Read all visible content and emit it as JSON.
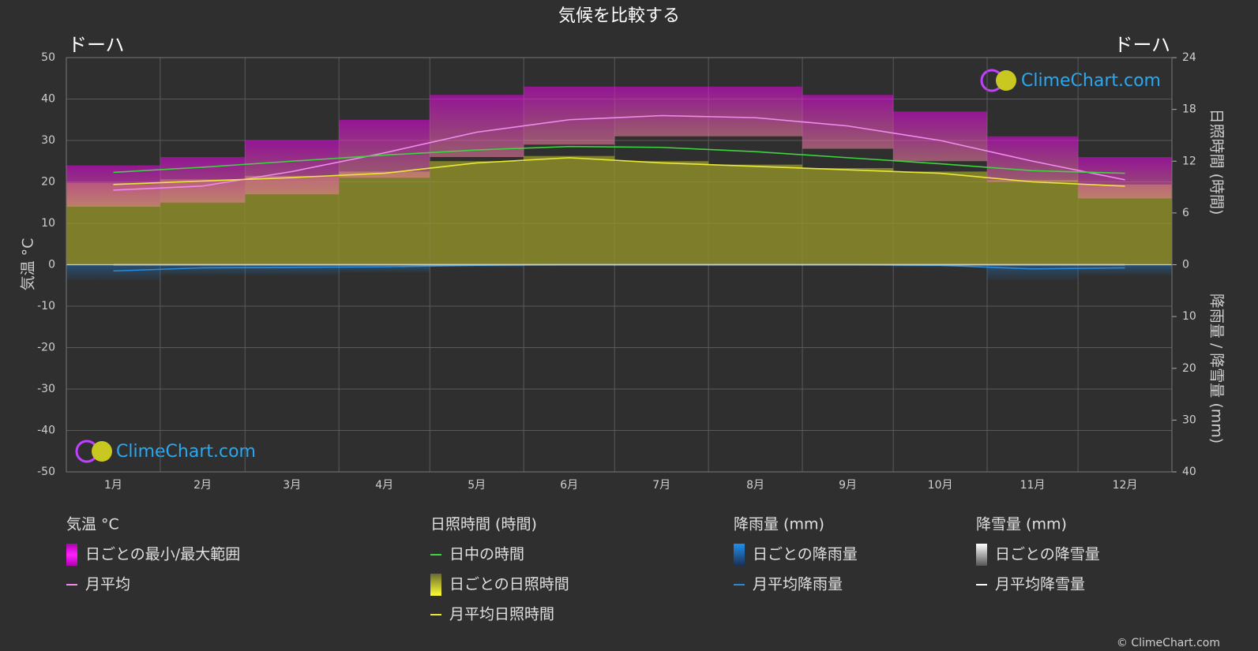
{
  "chart_data": {
    "type": "line",
    "title": "気候を比較する",
    "location_left": "ドーハ",
    "location_right": "ドーハ",
    "y_label": "気温 °C",
    "y2_label": "日照時間 (時間)",
    "y3_label": "降雨量 / 降雪量 (mm)",
    "watermark": "ClimeChart.com",
    "copyright": "© ClimeChart.com",
    "categories": [
      "1月",
      "2月",
      "3月",
      "4月",
      "5月",
      "6月",
      "7月",
      "8月",
      "9月",
      "10月",
      "11月",
      "12月"
    ],
    "ylim": [
      -50,
      50
    ],
    "yticks": [
      -50,
      -40,
      -30,
      -20,
      -10,
      0,
      10,
      20,
      30,
      40,
      50
    ],
    "y2lim": [
      0,
      24
    ],
    "y2ticks": [
      0,
      6,
      12,
      18,
      24
    ],
    "y3lim": [
      0,
      40
    ],
    "y3ticks": [
      10,
      20,
      30,
      40
    ],
    "grid": true,
    "groups": [
      {
        "title": "気温 °C",
        "series": [
          {
            "name": "日ごとの最小/最大範囲",
            "color": "#e600e6",
            "values": [
              24,
              26,
              30,
              35,
              41,
              43,
              43,
              43,
              41,
              37,
              31,
              26
            ],
            "low": [
              14,
              15,
              17,
              21,
              26,
              29,
              31,
              31,
              28,
              25,
              20,
              16
            ]
          },
          {
            "name": "月平均",
            "color": "#f08cf0",
            "values": [
              18,
              19,
              22.5,
              27,
              32,
              35,
              36,
              35.5,
              33.5,
              30,
              25,
              20.5
            ]
          }
        ]
      },
      {
        "title": "日照時間 (時間)",
        "series": [
          {
            "name": "日中の時間",
            "color": "#3ed43e",
            "axis": "y2",
            "values": [
              10.7,
              11.3,
              12.0,
              12.7,
              13.3,
              13.7,
              13.6,
              13.1,
              12.4,
              11.7,
              10.9,
              10.6
            ]
          },
          {
            "name": "日ごとの日照時間",
            "color": "#9a9a2a",
            "axis": "y2",
            "values": [
              9.5,
              9.9,
              10.3,
              10.8,
              12.0,
              12.6,
              12.0,
              11.6,
              11.2,
              10.8,
              9.8,
              9.3
            ]
          },
          {
            "name": "月平均日照時間",
            "color": "#e8e83a",
            "axis": "y2",
            "values": [
              9.3,
              9.7,
              10.1,
              10.6,
              11.8,
              12.4,
              11.8,
              11.4,
              11.0,
              10.6,
              9.6,
              9.1
            ]
          }
        ]
      },
      {
        "title": "降雨量 (mm)",
        "series": [
          {
            "name": "日ごとの降雨量",
            "color": "#1f6fb8",
            "axis": "y3",
            "values": [
              3,
              2,
              2,
              1.5,
              0.5,
              0,
              0,
              0,
              0,
              0.5,
              3,
              2
            ]
          },
          {
            "name": "月平均降雨量",
            "color": "#2a8ad8",
            "axis": "y3",
            "values": [
              1.2,
              0.6,
              0.5,
              0.4,
              0.1,
              0,
              0,
              0,
              0,
              0.1,
              0.8,
              0.6
            ]
          }
        ]
      },
      {
        "title": "降雪量 (mm)",
        "series": [
          {
            "name": "日ごとの降雪量",
            "color": "#e0e0e0",
            "axis": "y3",
            "values": [
              0,
              0,
              0,
              0,
              0,
              0,
              0,
              0,
              0,
              0,
              0,
              0
            ]
          },
          {
            "name": "月平均降雪量",
            "color": "#ffffff",
            "axis": "y3",
            "values": [
              0,
              0,
              0,
              0,
              0,
              0,
              0,
              0,
              0,
              0,
              0,
              0
            ]
          }
        ]
      }
    ]
  }
}
